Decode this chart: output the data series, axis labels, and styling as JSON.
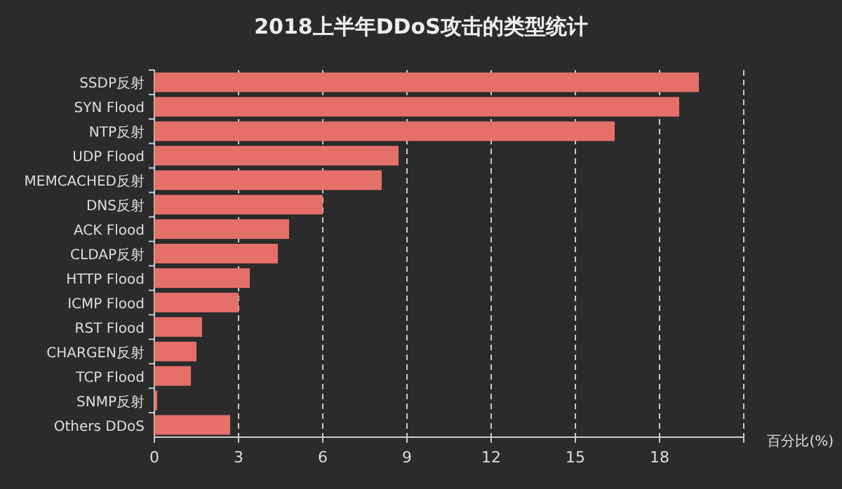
{
  "chart_data": {
    "type": "bar",
    "orientation": "horizontal",
    "title": "2018上半年DDoS攻击的类型统计",
    "xlabel": "百分比(%)",
    "categories": [
      "SSDP反射",
      "SYN Flood",
      "NTP反射",
      "UDP Flood",
      "MEMCACHED反射",
      "DNS反射",
      "ACK Flood",
      "CLDAP反射",
      "HTTP Flood",
      "ICMP Flood",
      "RST Flood",
      "CHARGEN反射",
      "TCP Flood",
      "SNMP反射",
      "Others DDoS"
    ],
    "values": [
      19.4,
      18.7,
      16.4,
      8.7,
      8.1,
      6.0,
      4.8,
      4.4,
      3.4,
      3.0,
      1.7,
      1.5,
      1.3,
      0.1,
      2.7
    ],
    "color": "#e5706a",
    "xlim": [
      0,
      21
    ],
    "xticks": [
      0,
      3,
      6,
      9,
      12,
      15,
      18,
      {
        "value": 21,
        "label": null
      }
    ],
    "grid": "x"
  }
}
